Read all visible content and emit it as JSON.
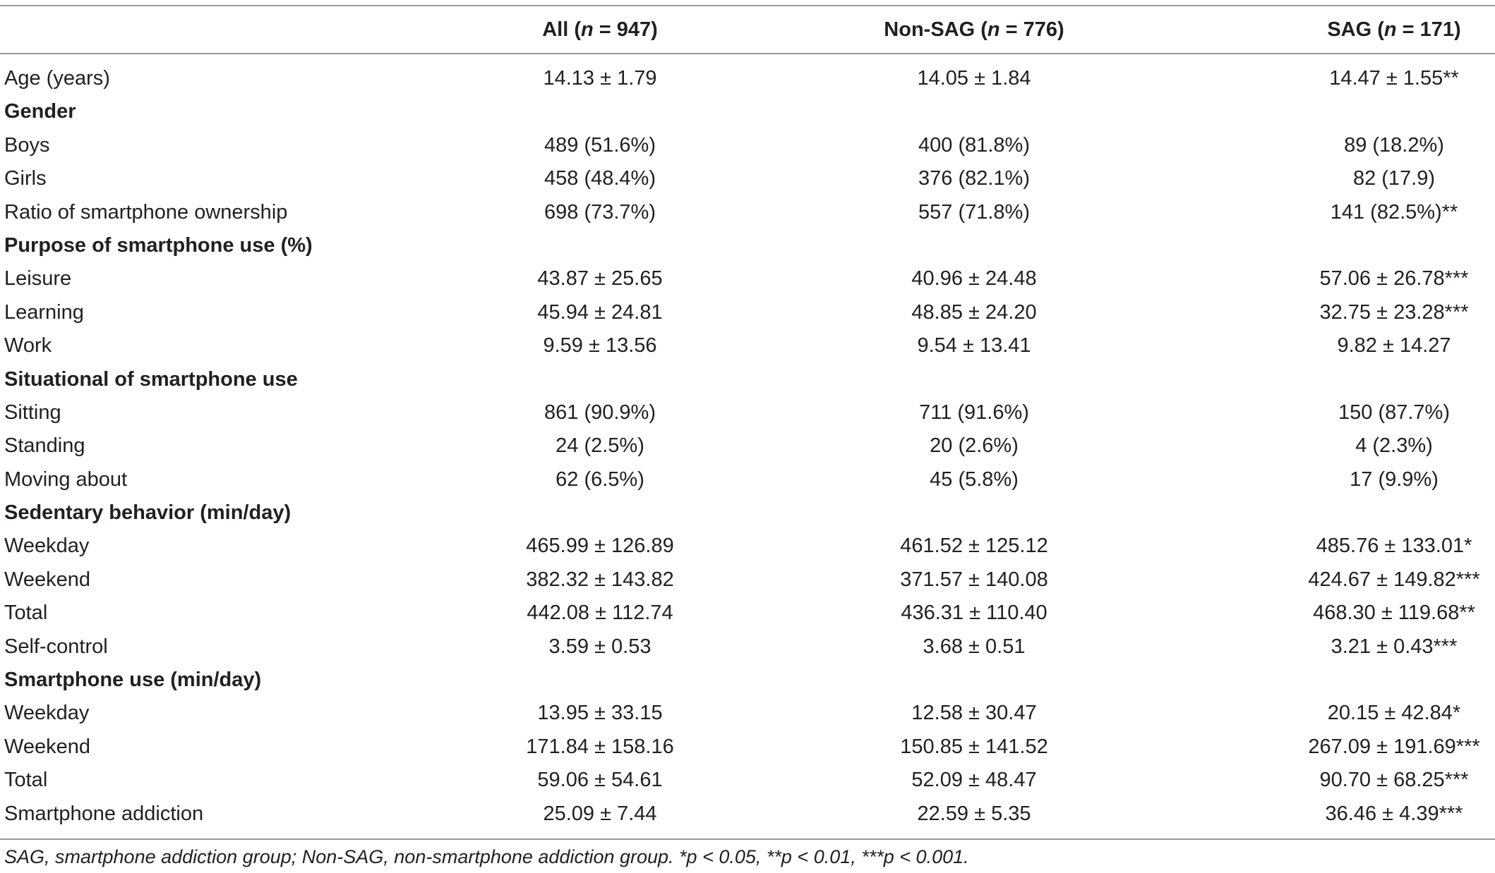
{
  "header": {
    "all": "All (n = 947)",
    "non_sag": "Non-SAG (n = 776)",
    "sag": "SAG (n = 171)"
  },
  "rows": [
    {
      "label": "Age (years)",
      "section": false,
      "all": "14.13 ± 1.79",
      "non_sag": "14.05 ± 1.84",
      "sag": "14.47 ± 1.55**"
    },
    {
      "label": "Gender",
      "section": true,
      "all": "",
      "non_sag": "",
      "sag": ""
    },
    {
      "label": "Boys",
      "section": false,
      "all": "489 (51.6%)",
      "non_sag": "400 (81.8%)",
      "sag": "89 (18.2%)"
    },
    {
      "label": "Girls",
      "section": false,
      "all": "458 (48.4%)",
      "non_sag": "376 (82.1%)",
      "sag": "82 (17.9)"
    },
    {
      "label": "Ratio of smartphone ownership",
      "section": false,
      "all": "698 (73.7%)",
      "non_sag": "557 (71.8%)",
      "sag": "141 (82.5%)**"
    },
    {
      "label": "Purpose of smartphone use (%)",
      "section": true,
      "all": "",
      "non_sag": "",
      "sag": ""
    },
    {
      "label": "Leisure",
      "section": false,
      "all": "43.87 ± 25.65",
      "non_sag": "40.96 ± 24.48",
      "sag": "57.06 ± 26.78***"
    },
    {
      "label": "Learning",
      "section": false,
      "all": "45.94 ± 24.81",
      "non_sag": "48.85 ± 24.20",
      "sag": "32.75 ± 23.28***"
    },
    {
      "label": "Work",
      "section": false,
      "all": "9.59 ± 13.56",
      "non_sag": "9.54 ± 13.41",
      "sag": "9.82 ± 14.27"
    },
    {
      "label": "Situational of smartphone use",
      "section": true,
      "all": "",
      "non_sag": "",
      "sag": ""
    },
    {
      "label": "Sitting",
      "section": false,
      "all": "861 (90.9%)",
      "non_sag": "711 (91.6%)",
      "sag": "150 (87.7%)"
    },
    {
      "label": "Standing",
      "section": false,
      "all": "24 (2.5%)",
      "non_sag": "20 (2.6%)",
      "sag": "4 (2.3%)"
    },
    {
      "label": "Moving about",
      "section": false,
      "all": "62 (6.5%)",
      "non_sag": "45 (5.8%)",
      "sag": "17 (9.9%)"
    },
    {
      "label": "Sedentary behavior (min/day)",
      "section": true,
      "all": "",
      "non_sag": "",
      "sag": ""
    },
    {
      "label": "Weekday",
      "section": false,
      "all": "465.99 ± 126.89",
      "non_sag": "461.52 ± 125.12",
      "sag": "485.76 ± 133.01*"
    },
    {
      "label": "Weekend",
      "section": false,
      "all": "382.32 ± 143.82",
      "non_sag": "371.57 ± 140.08",
      "sag": "424.67 ± 149.82***"
    },
    {
      "label": "Total",
      "section": false,
      "all": "442.08 ± 112.74",
      "non_sag": "436.31 ± 110.40",
      "sag": "468.30 ± 119.68**"
    },
    {
      "label": "Self-control",
      "section": false,
      "all": "3.59 ± 0.53",
      "non_sag": "3.68 ± 0.51",
      "sag": "3.21 ± 0.43***"
    },
    {
      "label": "Smartphone use (min/day)",
      "section": true,
      "all": "",
      "non_sag": "",
      "sag": ""
    },
    {
      "label": "Weekday",
      "section": false,
      "all": "13.95 ± 33.15",
      "non_sag": "12.58 ± 30.47",
      "sag": "20.15 ± 42.84*"
    },
    {
      "label": "Weekend",
      "section": false,
      "all": "171.84 ± 158.16",
      "non_sag": "150.85 ± 141.52",
      "sag": "267.09 ± 191.69***"
    },
    {
      "label": "Total",
      "section": false,
      "all": "59.06 ± 54.61",
      "non_sag": "52.09 ± 48.47",
      "sag": "90.70 ± 68.25***"
    },
    {
      "label": "Smartphone addiction",
      "section": false,
      "all": "25.09 ± 7.44",
      "non_sag": "22.59 ± 5.35",
      "sag": "36.46 ± 4.39***"
    }
  ],
  "footnote": "SAG, smartphone addiction group; Non-SAG, non-smartphone addiction group. *p < 0.05, **p < 0.01, ***p < 0.001."
}
